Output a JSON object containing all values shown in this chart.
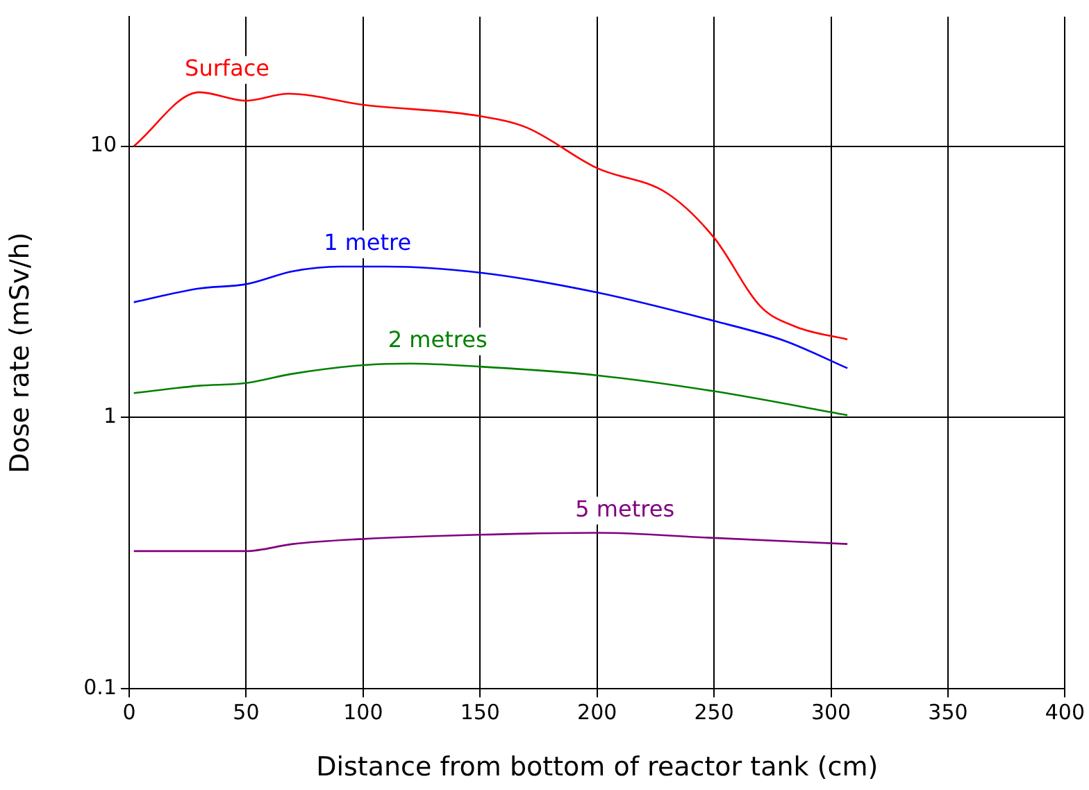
{
  "chart_data": {
    "type": "line",
    "xlabel": "Distance from bottom of reactor tank (cm)",
    "ylabel": "Dose rate (mSv/h)",
    "log": "y",
    "grid": true,
    "marker": "none",
    "legend": false,
    "xlim": [
      0,
      400
    ],
    "xticks": [
      0,
      50,
      100,
      150,
      200,
      250,
      300,
      350,
      400
    ],
    "ylim": [
      0.1,
      30
    ],
    "yticks": [
      0.1,
      1,
      10
    ],
    "series": [
      {
        "name": "Surface",
        "color": "#ff0000",
        "x": [
          2,
          30,
          50,
          68,
          100,
          150,
          170,
          200,
          230,
          250,
          270,
          285,
          307
        ],
        "values": [
          10,
          15.8,
          14.7,
          15.6,
          14.2,
          12.9,
          11.7,
          8.3,
          6.7,
          4.6,
          2.56,
          2.16,
          1.94
        ]
      },
      {
        "name": "1 metre",
        "color": "#0000ff",
        "x": [
          2,
          30,
          50,
          70,
          90,
          110,
          150,
          200,
          250,
          280,
          307
        ],
        "values": [
          2.66,
          2.99,
          3.1,
          3.46,
          3.6,
          3.6,
          3.42,
          2.89,
          2.27,
          1.92,
          1.52
        ]
      },
      {
        "name": "2 metres",
        "color": "#008000",
        "x": [
          2,
          30,
          50,
          70,
          100,
          120,
          150,
          200,
          250,
          307
        ],
        "values": [
          1.23,
          1.31,
          1.34,
          1.45,
          1.56,
          1.58,
          1.54,
          1.43,
          1.25,
          1.02
        ]
      },
      {
        "name": "5 metres",
        "color": "#800080",
        "x": [
          2,
          50,
          70,
          100,
          150,
          200,
          250,
          307
        ],
        "values": [
          0.322,
          0.322,
          0.342,
          0.357,
          0.37,
          0.376,
          0.36,
          0.342
        ]
      }
    ]
  }
}
